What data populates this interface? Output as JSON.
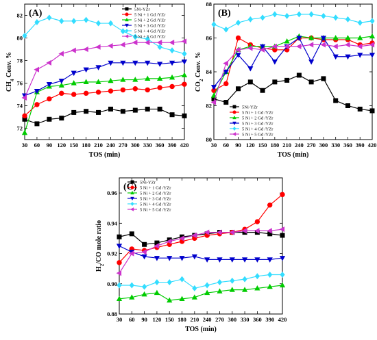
{
  "chart_data": [
    {
      "type": "line",
      "panel_label": "(A)",
      "xlabel": "TOS (min)",
      "ylabel": "CH4 Conv. %",
      "ylabel_main": "CH",
      "ylabel_sub": "4",
      "ylabel_rest": " Conv. %",
      "x": [
        30,
        60,
        90,
        120,
        150,
        180,
        210,
        240,
        270,
        300,
        330,
        360,
        390,
        420
      ],
      "xlim": [
        30,
        420
      ],
      "ylim": [
        71,
        83
      ],
      "yticks": [
        72,
        74,
        76,
        78,
        80,
        82
      ],
      "legend_position": "top-right",
      "series": [
        {
          "name": "5Ni-YZr",
          "color": "#000000",
          "marker": "square",
          "values": [
            72.8,
            72.4,
            72.8,
            72.9,
            73.4,
            73.5,
            73.4,
            73.7,
            73.5,
            73.6,
            73.7,
            73.7,
            73.2,
            73.1
          ]
        },
        {
          "name": "5 Ni + 1 Gd /YZr",
          "color": "#ff0000",
          "marker": "circle",
          "values": [
            73.1,
            74.1,
            74.6,
            75.1,
            75.0,
            75.1,
            75.2,
            75.3,
            75.4,
            75.5,
            75.4,
            75.6,
            75.7,
            75.9
          ]
        },
        {
          "name": "5 Ni + 2 Gd /YZr",
          "color": "#00cc00",
          "marker": "triangle-up",
          "values": [
            71.6,
            75.2,
            75.7,
            75.8,
            76.0,
            76.1,
            76.1,
            76.2,
            76.3,
            76.3,
            76.4,
            76.4,
            76.5,
            76.7
          ]
        },
        {
          "name": "5 Ni + 3 Gd /YZr",
          "color": "#0000cc",
          "marker": "triangle-down",
          "values": [
            74.9,
            75.3,
            75.9,
            76.2,
            76.9,
            77.2,
            77.4,
            77.8,
            77.8,
            77.8,
            77.8,
            77.7,
            77.8,
            77.9
          ]
        },
        {
          "name": "5 Ni + 4 Gd /YZr",
          "color": "#33ddff",
          "marker": "diamond",
          "values": [
            80.2,
            81.4,
            81.8,
            81.5,
            81.5,
            81.6,
            81.3,
            81.3,
            80.6,
            80.1,
            79.9,
            79.2,
            78.9,
            78.6
          ]
        },
        {
          "name": "5 Ni + 5 Gd /YZr",
          "color": "#cc33cc",
          "marker": "triangle-left",
          "values": [
            74.7,
            77.2,
            77.8,
            78.6,
            78.9,
            79.0,
            79.2,
            79.3,
            79.4,
            79.6,
            79.6,
            79.6,
            79.6,
            79.7
          ]
        }
      ]
    },
    {
      "type": "line",
      "panel_label": "(B)",
      "xlabel": "TOS (min)",
      "ylabel": "CO2 Conv. %",
      "ylabel_main": "CO",
      "ylabel_sub": "2",
      "ylabel_rest": " Conv. %",
      "x": [
        30,
        60,
        90,
        120,
        150,
        180,
        210,
        240,
        270,
        300,
        330,
        360,
        390,
        420
      ],
      "xlim": [
        30,
        420
      ],
      "ylim": [
        80,
        88
      ],
      "yticks": [
        80,
        82,
        84,
        86,
        88
      ],
      "legend_position": "bottom-left",
      "series": [
        {
          "name": "5Ni-YZr",
          "color": "#000000",
          "marker": "square",
          "values": [
            82.4,
            82.2,
            83.0,
            83.4,
            82.9,
            83.4,
            83.5,
            83.8,
            83.4,
            83.6,
            82.3,
            82.0,
            81.8,
            81.7
          ]
        },
        {
          "name": "5 Ni + 1 Gd /YZr",
          "color": "#ff0000",
          "marker": "circle",
          "values": [
            82.9,
            83.3,
            86.0,
            85.6,
            85.4,
            85.3,
            85.3,
            86.0,
            86.0,
            85.9,
            85.9,
            85.9,
            85.6,
            85.7
          ]
        },
        {
          "name": "5 Ni + 2 Gd /YZr",
          "color": "#00cc00",
          "marker": "triangle-up",
          "values": [
            82.6,
            84.0,
            85.3,
            85.5,
            85.5,
            85.5,
            85.8,
            86.1,
            86.0,
            86.0,
            86.0,
            86.0,
            86.0,
            86.1
          ]
        },
        {
          "name": "5 Ni + 3 Gd /YZr",
          "color": "#0000cc",
          "marker": "triangle-down",
          "values": [
            83.1,
            84.0,
            85.0,
            84.2,
            85.5,
            84.6,
            85.5,
            86.0,
            84.6,
            86.0,
            84.9,
            84.9,
            85.0,
            85.0
          ]
        },
        {
          "name": "5 Ni + 4 Gd /YZr",
          "color": "#33ddff",
          "marker": "diamond",
          "values": [
            86.8,
            86.5,
            86.9,
            87.1,
            87.2,
            87.4,
            87.3,
            87.4,
            87.4,
            87.3,
            87.2,
            87.1,
            86.9,
            87.0
          ]
        },
        {
          "name": "5 Ni + 5 Gd /YZr",
          "color": "#cc33cc",
          "marker": "triangle-left",
          "values": [
            82.2,
            84.5,
            85.3,
            85.4,
            85.3,
            85.5,
            85.5,
            85.5,
            85.6,
            85.6,
            85.5,
            85.6,
            85.5,
            85.6
          ]
        }
      ]
    },
    {
      "type": "line",
      "panel_label": "(C)",
      "xlabel": "TOS (min)",
      "ylabel": "H2/CO mole ratio",
      "ylabel_main": "H",
      "ylabel_sub": "2",
      "ylabel_rest": "/CO mole ratio",
      "x": [
        30,
        60,
        90,
        120,
        150,
        180,
        210,
        240,
        270,
        300,
        330,
        360,
        390,
        420
      ],
      "xlim": [
        30,
        420
      ],
      "ylim": [
        0.88,
        0.97
      ],
      "yticks": [
        0.88,
        0.9,
        0.92,
        0.94,
        0.96
      ],
      "legend_position": "top-left",
      "series": [
        {
          "name": "5Ni-YZr",
          "color": "#000000",
          "marker": "square",
          "values": [
            0.931,
            0.933,
            0.926,
            0.927,
            0.929,
            0.931,
            0.932,
            0.933,
            0.934,
            0.934,
            0.934,
            0.934,
            0.933,
            0.932
          ]
        },
        {
          "name": "5 Ni + 1 Gd /YZr",
          "color": "#ff0000",
          "marker": "circle",
          "values": [
            0.914,
            0.923,
            0.922,
            0.924,
            0.926,
            0.928,
            0.93,
            0.932,
            0.933,
            0.934,
            0.936,
            0.941,
            0.952,
            0.959
          ]
        },
        {
          "name": "5 Ni + 2 Gd /YZr",
          "color": "#00cc00",
          "marker": "triangle-up",
          "values": [
            0.89,
            0.891,
            0.893,
            0.894,
            0.889,
            0.89,
            0.891,
            0.894,
            0.895,
            0.896,
            0.896,
            0.897,
            0.898,
            0.899
          ]
        },
        {
          "name": "5 Ni + 3 Gd /YZr",
          "color": "#0000cc",
          "marker": "triangle-down",
          "values": [
            0.925,
            0.921,
            0.918,
            0.917,
            0.917,
            0.917,
            0.918,
            0.916,
            0.916,
            0.916,
            0.916,
            0.916,
            0.916,
            0.917
          ]
        },
        {
          "name": "5 Ni + 4 Gd /YZr",
          "color": "#33ddff",
          "marker": "diamond",
          "values": [
            0.899,
            0.899,
            0.898,
            0.901,
            0.901,
            0.903,
            0.897,
            0.899,
            0.901,
            0.902,
            0.903,
            0.905,
            0.906,
            0.906
          ]
        },
        {
          "name": "5 Ni + 5 Gd /YZr",
          "color": "#cc33cc",
          "marker": "triangle-left",
          "values": [
            0.907,
            0.92,
            0.921,
            0.925,
            0.928,
            0.93,
            0.932,
            0.934,
            0.934,
            0.934,
            0.935,
            0.935,
            0.935,
            0.936
          ]
        }
      ]
    }
  ]
}
